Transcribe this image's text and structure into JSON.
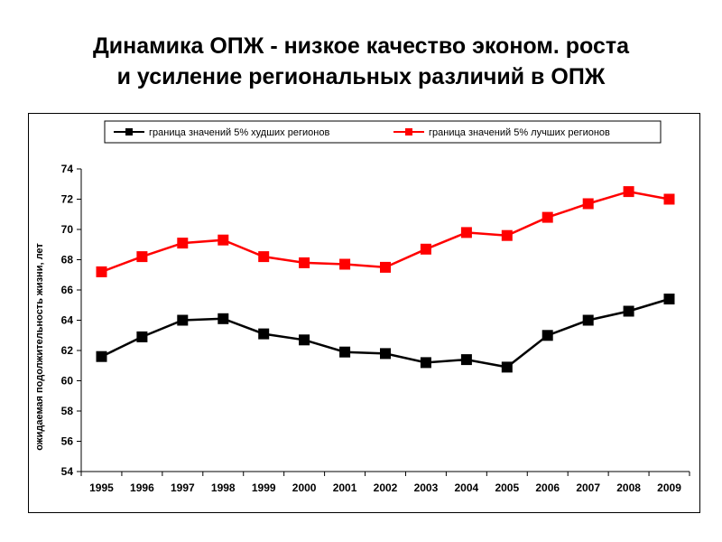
{
  "title": {
    "line1": "Динамика ОПЖ - низкое качество эконом. роста",
    "line2": "и усиление региональных различий в ОПЖ"
  },
  "colors": {
    "worst": "#000000",
    "best": "#ff0000",
    "axis": "#000000",
    "plot_background": "#ffffff"
  },
  "chart_data": {
    "type": "line",
    "title": "",
    "xlabel": "",
    "ylabel": "ожидаемая подолжительность жизни, лет",
    "categories": [
      "1995",
      "1996",
      "1997",
      "1998",
      "1999",
      "2000",
      "2001",
      "2002",
      "2003",
      "2004",
      "2005",
      "2006",
      "2007",
      "2008",
      "2009"
    ],
    "ylim": [
      54,
      74
    ],
    "yticks": [
      "54",
      "56",
      "58",
      "60",
      "62",
      "64",
      "66",
      "68",
      "70",
      "72",
      "74"
    ],
    "grid": false,
    "legend_position": "top",
    "series": [
      {
        "name": "граница значений 5% худших регионов",
        "color": "#000000",
        "marker": "square",
        "values": [
          61.6,
          62.9,
          64.0,
          64.1,
          63.1,
          62.7,
          61.9,
          61.8,
          61.2,
          61.4,
          60.9,
          63.0,
          64.0,
          64.6,
          65.4
        ]
      },
      {
        "name": "граница значений 5% лучших регионов",
        "color": "#ff0000",
        "marker": "square",
        "values": [
          67.2,
          68.2,
          69.1,
          69.3,
          68.2,
          67.8,
          67.7,
          67.5,
          68.7,
          69.8,
          69.6,
          70.8,
          71.7,
          72.5,
          72.0
        ]
      }
    ]
  }
}
